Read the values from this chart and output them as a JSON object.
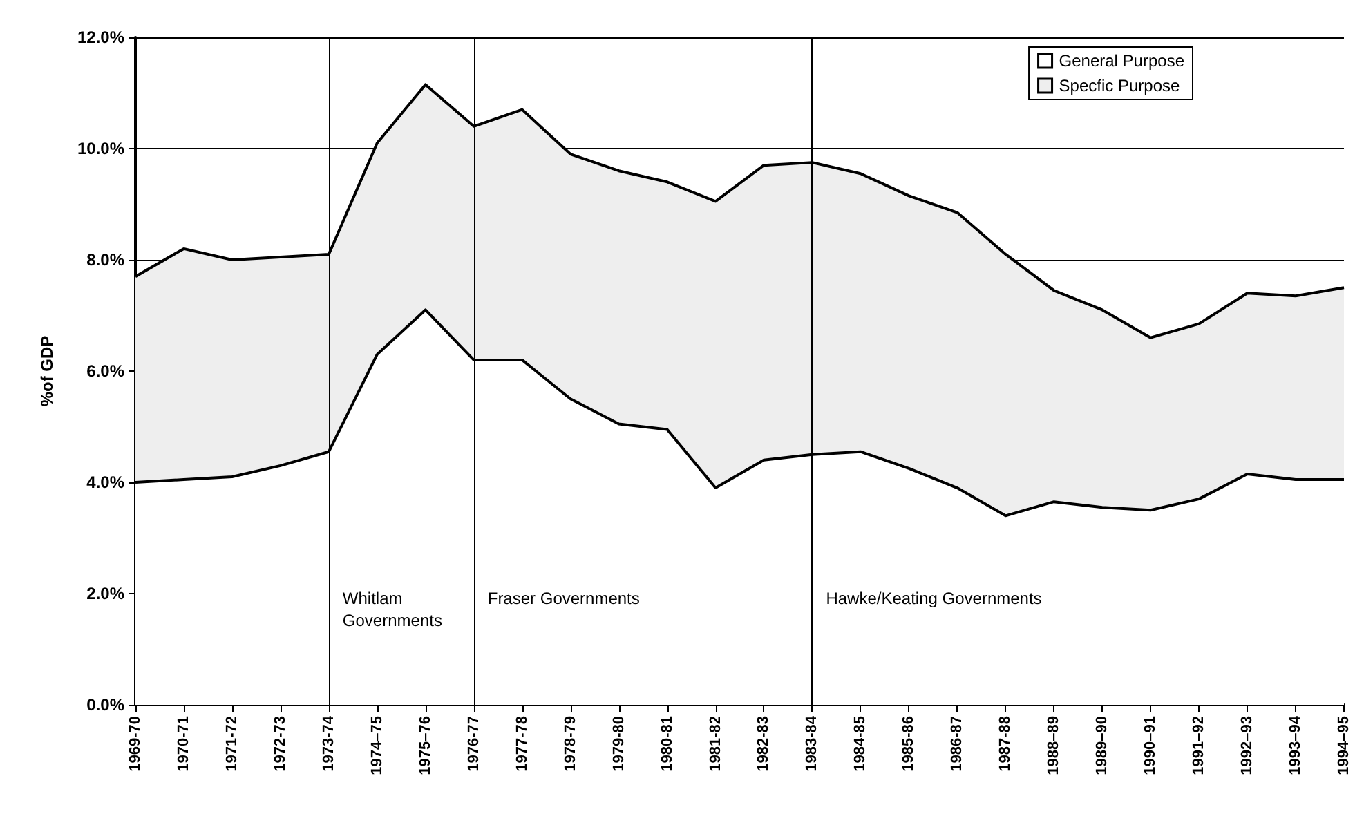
{
  "chart_data": {
    "type": "area",
    "stacked": true,
    "ylabel": "%of GDP",
    "categories": [
      "1969-70",
      "1970-71",
      "1971-72",
      "1972-73",
      "1973-74",
      "1974–75",
      "1975–76",
      "1976-77",
      "1977-78",
      "1978-79",
      "1979-80",
      "1980-81",
      "1981-82",
      "1982-83",
      "1983-84",
      "1984-85",
      "1985-86",
      "1986-87",
      "1987-88",
      "1988–89",
      "1989–90",
      "1990–91",
      "1991–92",
      "1992–93",
      "1993–94",
      "1994–95"
    ],
    "series": [
      {
        "name": "General Purpose",
        "color": "#ffffff",
        "values": [
          4.0,
          4.05,
          4.1,
          4.3,
          4.55,
          6.3,
          7.1,
          6.2,
          6.2,
          5.5,
          5.05,
          4.95,
          3.9,
          4.4,
          4.5,
          4.55,
          4.25,
          3.9,
          3.4,
          3.65,
          3.55,
          3.5,
          3.7,
          4.15,
          4.05,
          4.05
        ]
      },
      {
        "name": "Specfic Purpose",
        "color": "#eeeeee",
        "values": [
          3.7,
          4.15,
          3.9,
          3.75,
          3.55,
          3.8,
          4.05,
          4.2,
          4.5,
          4.4,
          4.55,
          4.45,
          5.15,
          5.3,
          5.25,
          5.0,
          4.9,
          4.95,
          4.7,
          3.8,
          3.55,
          3.1,
          3.15,
          3.25,
          3.3,
          3.45
        ]
      }
    ],
    "ylim": [
      0,
      12
    ],
    "yticks": [
      {
        "value": 0,
        "label": "0.0%"
      },
      {
        "value": 2,
        "label": "2.0%"
      },
      {
        "value": 4,
        "label": "4.0%"
      },
      {
        "value": 6,
        "label": "6.0%"
      },
      {
        "value": 8,
        "label": "8.0%"
      },
      {
        "value": 10,
        "label": "10.0%"
      },
      {
        "value": 12,
        "label": "12.0%"
      }
    ],
    "ref_lines": [
      {
        "axis": "x",
        "value": "1973-74",
        "label": "Whitlam\nGovernments"
      },
      {
        "axis": "x",
        "value": "1976-77",
        "label": "Fraser Governments"
      },
      {
        "axis": "x",
        "value": "1983-84",
        "label": "Hawke/Keating Governments"
      }
    ],
    "grid": "y",
    "legend": "top right",
    "marker": "none",
    "line_style": "solid"
  }
}
